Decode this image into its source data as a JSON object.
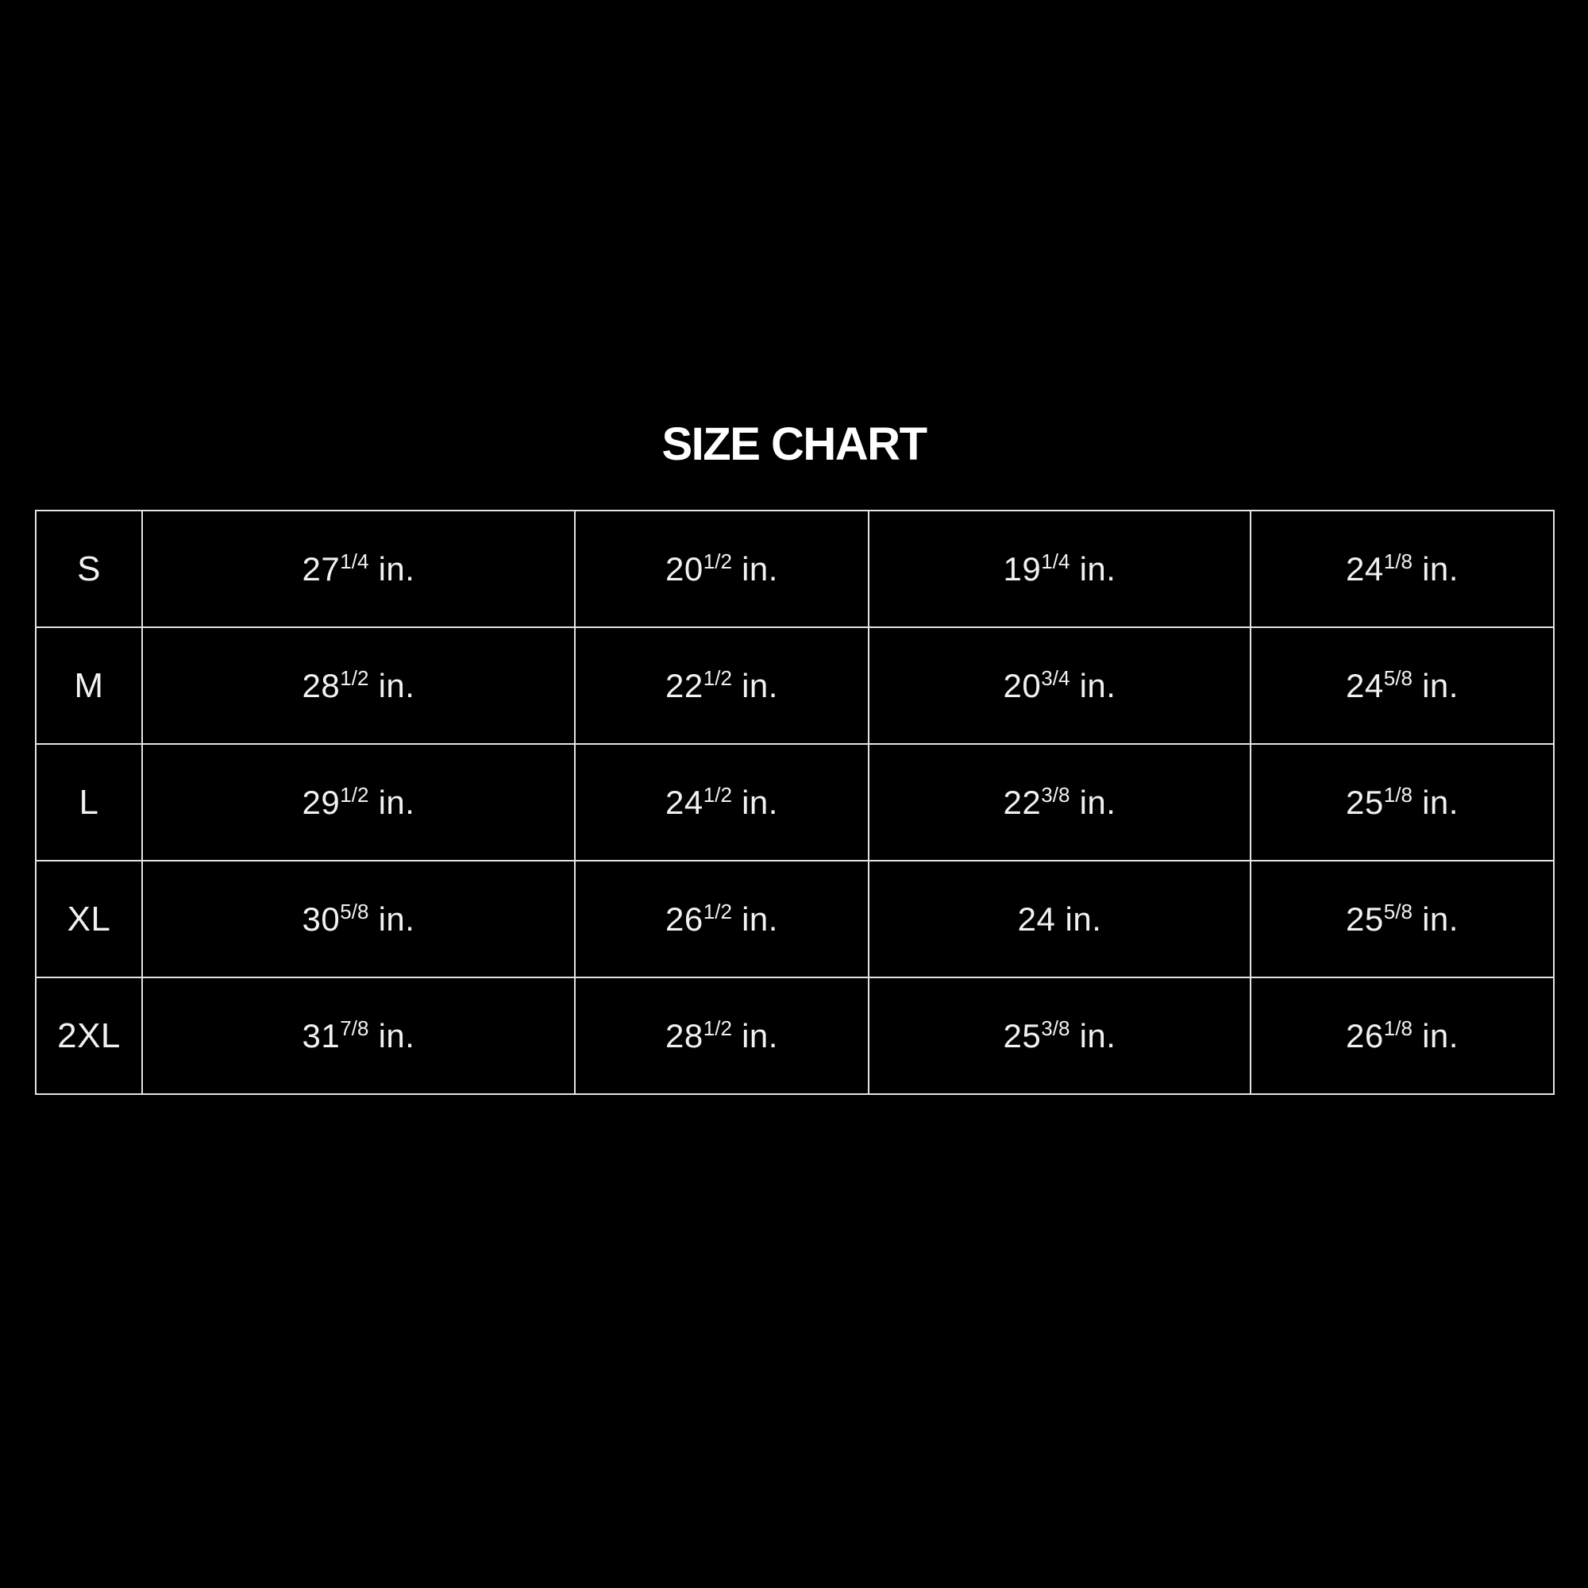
{
  "title": "SIZE CHART",
  "colors": {
    "background": "#000000",
    "title_text": "#ffffff",
    "table_text": "#f1f1f1",
    "table_border": "#e3e3e3"
  },
  "unit": "in.",
  "chart_data": {
    "type": "table",
    "title": "SIZE CHART",
    "rows": [
      [
        "S",
        "27 1/4 in.",
        "20 1/2 in.",
        "19 1/4 in.",
        "24 1/8 in."
      ],
      [
        "M",
        "28 1/2 in.",
        "22 1/2 in.",
        "20 3/4 in.",
        "24 5/8 in."
      ],
      [
        "L",
        "29 1/2 in.",
        "24 1/2 in.",
        "22 3/8 in.",
        "25 1/8 in."
      ],
      [
        "XL",
        "30 5/8 in.",
        "26 1/2 in.",
        "24 in.",
        "25 5/8 in."
      ],
      [
        "2XL",
        "31 7/8 in.",
        "28 1/2 in.",
        "25 3/8 in.",
        "26 1/8 in."
      ]
    ],
    "layout": {
      "header_row": false,
      "grid": true,
      "background": "black",
      "column_count": 5,
      "row_count": 5
    }
  }
}
